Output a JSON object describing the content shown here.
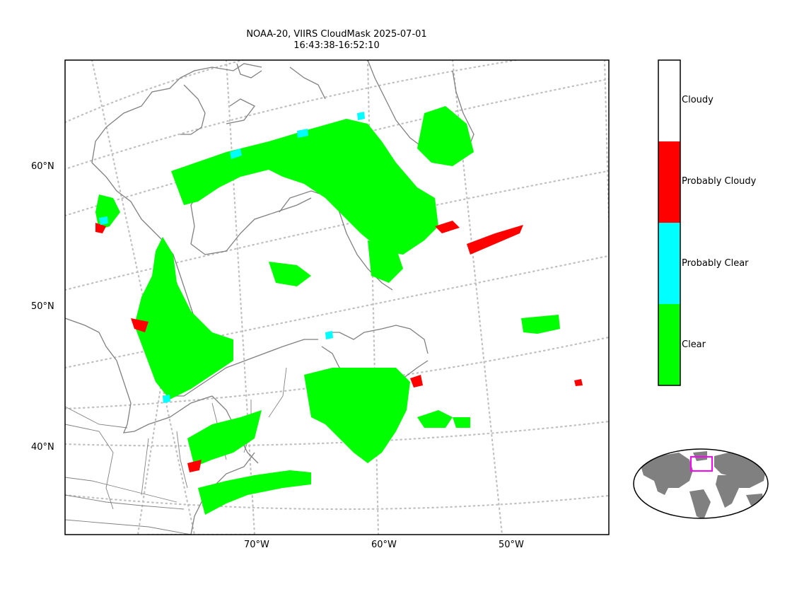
{
  "title": {
    "line1": "NOAA-20, VIIRS CloudMask 2025-07-01",
    "line2": "16:43:38-16:52:10"
  },
  "latitude_labels": [
    "60°N",
    "50°N",
    "40°N"
  ],
  "longitude_labels": [
    "70°W",
    "60°W",
    "50°W"
  ],
  "colorbar": {
    "classes": [
      {
        "label": "Cloudy",
        "color": "#ffffff"
      },
      {
        "label": "Probably Cloudy",
        "color": "#ff0000"
      },
      {
        "label": "Probably Clear",
        "color": "#00ffff"
      },
      {
        "label": "Clear",
        "color": "#00ff00"
      }
    ]
  },
  "colors": {
    "coastline": "#808080",
    "graticule": "#c0c0c0",
    "locator_land": "#808080",
    "locator_box": "#ff00ff"
  }
}
